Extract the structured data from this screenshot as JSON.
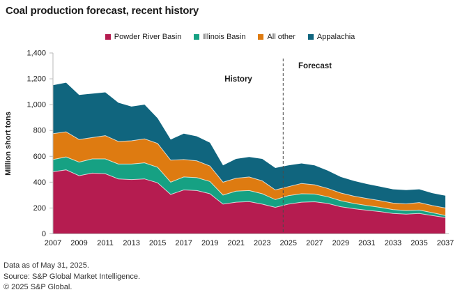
{
  "title": "Coal production forecast, recent history",
  "footer": {
    "lines": [
      "Data as of May 31, 2025.",
      "Source: S&P Global Market Intelligence.",
      "© 2025 S&P Global."
    ]
  },
  "chart_data": {
    "type": "area",
    "stacked": true,
    "title": "Coal production forecast, recent history",
    "xlabel": "",
    "ylabel": "Million short tons",
    "ylim": [
      0,
      1400
    ],
    "ytick_step": 200,
    "grid": false,
    "legend_position": "top",
    "years": [
      2007,
      2008,
      2009,
      2010,
      2011,
      2012,
      2013,
      2014,
      2015,
      2016,
      2017,
      2018,
      2019,
      2020,
      2021,
      2022,
      2023,
      2024,
      2025,
      2026,
      2027,
      2028,
      2029,
      2030,
      2031,
      2032,
      2033,
      2034,
      2035,
      2036,
      2037
    ],
    "xtick_years": [
      2007,
      2009,
      2011,
      2013,
      2015,
      2017,
      2019,
      2021,
      2023,
      2025,
      2027,
      2029,
      2031,
      2033,
      2035,
      2037
    ],
    "series": [
      {
        "name": "Powder River Basin",
        "color": "#b51c50",
        "values": [
          480,
          495,
          450,
          470,
          465,
          425,
          420,
          425,
          395,
          305,
          340,
          335,
          310,
          230,
          245,
          250,
          230,
          205,
          230,
          245,
          248,
          235,
          210,
          195,
          183,
          172,
          158,
          152,
          158,
          142,
          126
        ]
      },
      {
        "name": "Illinois Basin",
        "color": "#16a183",
        "values": [
          95,
          100,
          105,
          110,
          115,
          115,
          120,
          125,
          120,
          95,
          100,
          100,
          95,
          70,
          85,
          85,
          80,
          60,
          65,
          65,
          60,
          52,
          46,
          40,
          36,
          33,
          30,
          28,
          26,
          22,
          16
        ]
      },
      {
        "name": "All other",
        "color": "#de7b11",
        "values": [
          200,
          195,
          175,
          165,
          180,
          175,
          180,
          185,
          185,
          170,
          135,
          130,
          120,
          100,
          100,
          105,
          100,
          75,
          70,
          80,
          72,
          65,
          60,
          57,
          55,
          52,
          50,
          52,
          58,
          55,
          58
        ]
      },
      {
        "name": "Appalachia",
        "color": "#10657e",
        "values": [
          375,
          380,
          345,
          340,
          335,
          300,
          265,
          265,
          195,
          160,
          200,
          190,
          180,
          130,
          150,
          155,
          170,
          170,
          165,
          155,
          150,
          138,
          124,
          118,
          112,
          108,
          107,
          106,
          103,
          96,
          95
        ]
      }
    ],
    "divider": {
      "year": 2024.6,
      "history_label": "History",
      "forecast_label": "Forecast"
    },
    "axis_color": "#b9b9b9",
    "text_color": "#1a1a1a",
    "divider_color": "#4a4a4a"
  }
}
